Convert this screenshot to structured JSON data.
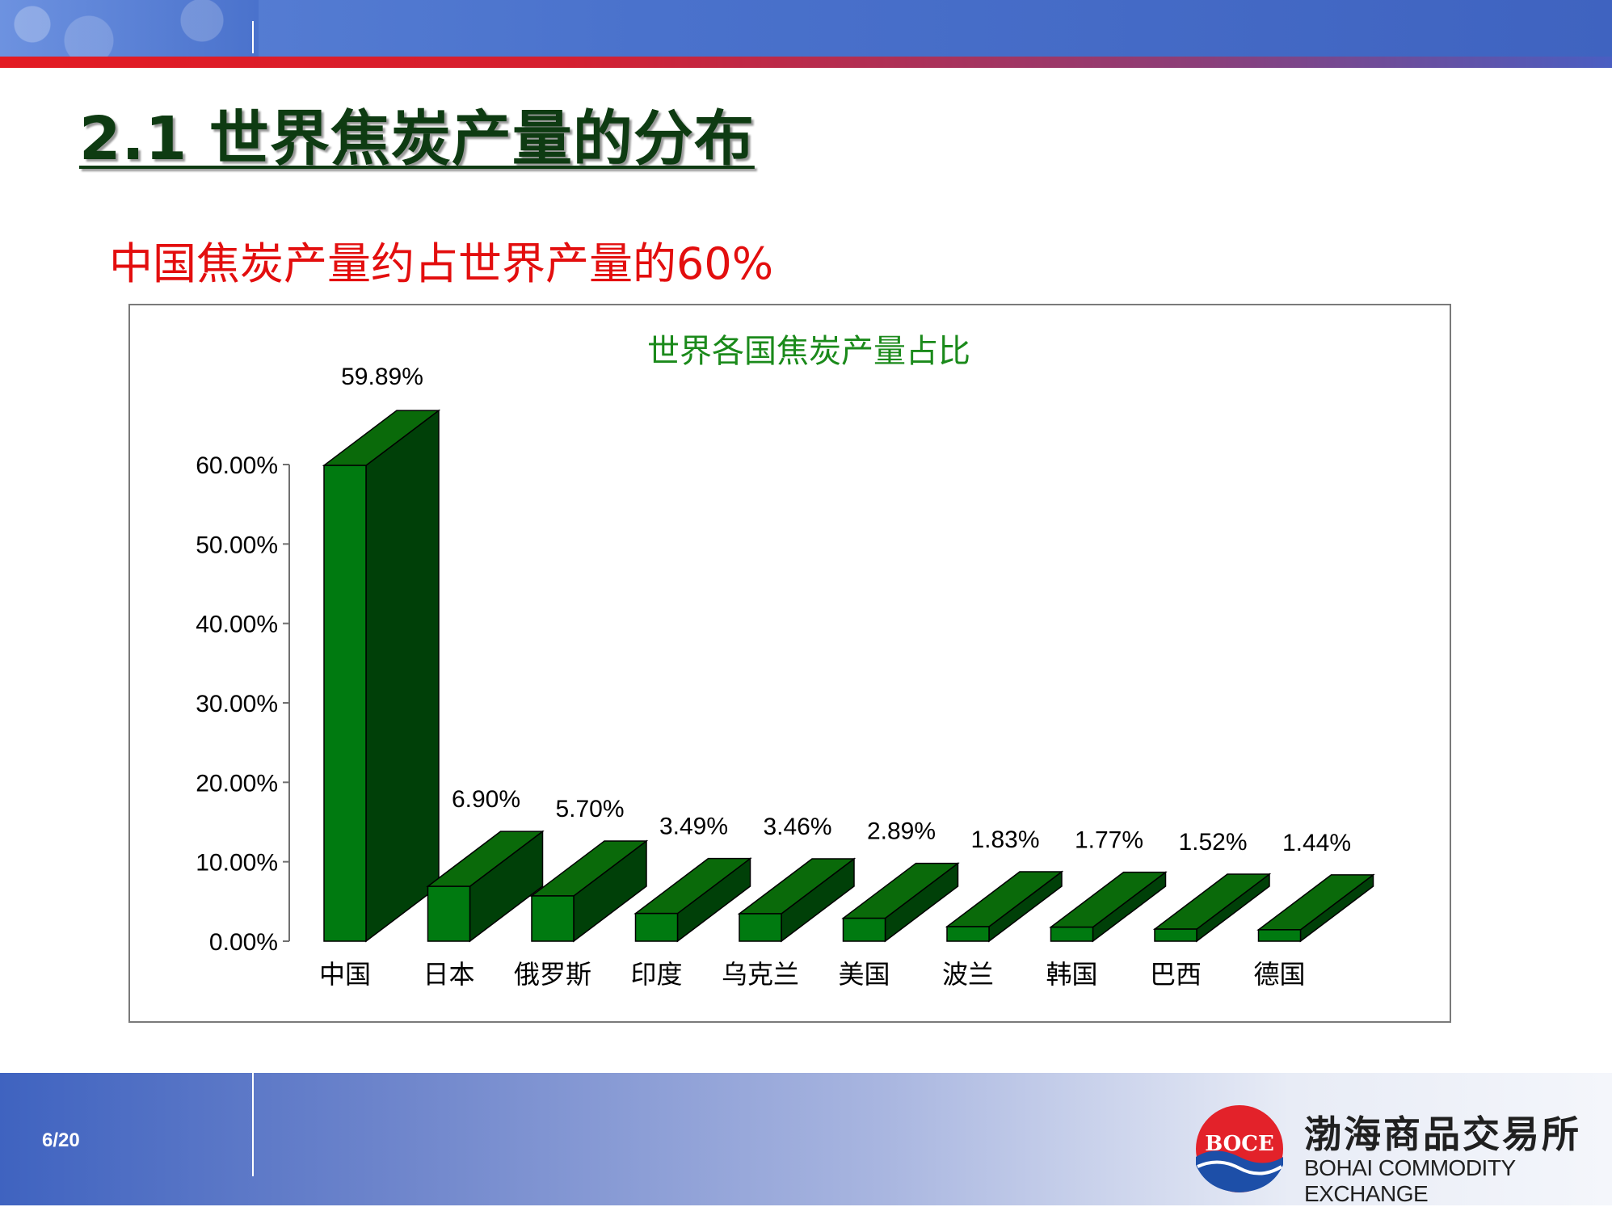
{
  "slide": {
    "title": "2.1 世界焦炭产量的分布",
    "subtitle": "中国焦炭产量约占世界产量的60%",
    "page_number": "6/20"
  },
  "footer": {
    "logo_text": "BOCE",
    "company_name_cn": "渤海商品交易所",
    "company_name_en": "BOHAI COMMODITY EXCHANGE"
  },
  "colors": {
    "bar_front": "#007a10",
    "bar_top": "#0a6a0a",
    "bar_side": "#004008",
    "title_green": "#1b8a1b",
    "subtitle_red": "#e30e0e",
    "banner_blue": "#4a72cc",
    "stripe_red": "#e31b23"
  },
  "chart_data": {
    "type": "bar",
    "title": "世界各国焦炭产量占比",
    "categories": [
      "中国",
      "日本",
      "俄罗斯",
      "印度",
      "乌克兰",
      "美国",
      "波兰",
      "韩国",
      "巴西",
      "德国"
    ],
    "values": [
      59.89,
      6.9,
      5.7,
      3.49,
      3.46,
      2.89,
      1.83,
      1.77,
      1.52,
      1.44
    ],
    "data_labels": [
      "59.89%",
      "6.90%",
      "5.70%",
      "3.49%",
      "3.46%",
      "2.89%",
      "1.83%",
      "1.77%",
      "1.52%",
      "1.44%"
    ],
    "ylim": [
      0,
      60
    ],
    "yticks": [
      0,
      10,
      20,
      30,
      40,
      50,
      60
    ],
    "ytick_labels": [
      "0.00%",
      "10.00%",
      "20.00%",
      "30.00%",
      "40.00%",
      "50.00%",
      "60.00%"
    ],
    "grid": false,
    "style": "3d"
  }
}
